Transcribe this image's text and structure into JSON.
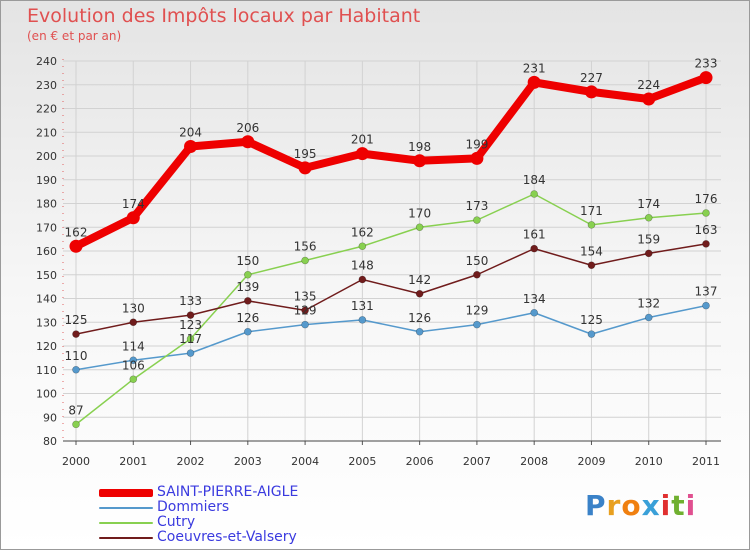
{
  "title": "Evolution des Impôts locaux par Habitant",
  "subtitle": "(en € et par an)",
  "logo_text": "Proxiti",
  "chart_data": {
    "type": "line",
    "x": [
      "2000",
      "2001",
      "2002",
      "2003",
      "2004",
      "2005",
      "2006",
      "2007",
      "2008",
      "2009",
      "2010",
      "2011"
    ],
    "ylim": [
      80,
      240
    ],
    "yticks": [
      "80",
      "90",
      "100",
      "110",
      "120",
      "130",
      "140",
      "150",
      "160",
      "170",
      "180",
      "190",
      "200",
      "210",
      "220",
      "230",
      "240"
    ],
    "grid": true,
    "legend_position": "bottom-left",
    "series": [
      {
        "name": "SAINT-PIERRE-AIGLE",
        "color": "#ee0000",
        "values": [
          162,
          174,
          204,
          206,
          195,
          201,
          198,
          199,
          231,
          227,
          224,
          233
        ],
        "labels": [
          "162",
          "174",
          "204",
          "206",
          "195",
          "201",
          "198",
          "199",
          "231",
          "227",
          "224",
          "233"
        ]
      },
      {
        "name": "Dommiers",
        "color": "#5599cc",
        "values": [
          110,
          114,
          117,
          126,
          129,
          131,
          126,
          129,
          134,
          125,
          132,
          137
        ],
        "labels": [
          "110",
          "114",
          "117",
          "126",
          "129",
          "131",
          "126",
          "129",
          "134",
          "125",
          "132",
          "137"
        ]
      },
      {
        "name": "Cutry",
        "color": "#88d050",
        "values": [
          87,
          106,
          123,
          150,
          156,
          162,
          170,
          173,
          184,
          171,
          174,
          176
        ],
        "labels": [
          "87",
          "106",
          "123",
          "150",
          "156",
          "162",
          "170",
          "173",
          "184",
          "171",
          "174",
          "176"
        ]
      },
      {
        "name": "Coeuvres-et-Valsery",
        "color": "#701c1c",
        "values": [
          125,
          130,
          133,
          139,
          135,
          148,
          142,
          150,
          161,
          154,
          159,
          163
        ],
        "labels": [
          "125",
          "130",
          "133",
          "139",
          "135",
          "148",
          "142",
          "150",
          "161",
          "154",
          "159",
          "163"
        ]
      }
    ]
  }
}
